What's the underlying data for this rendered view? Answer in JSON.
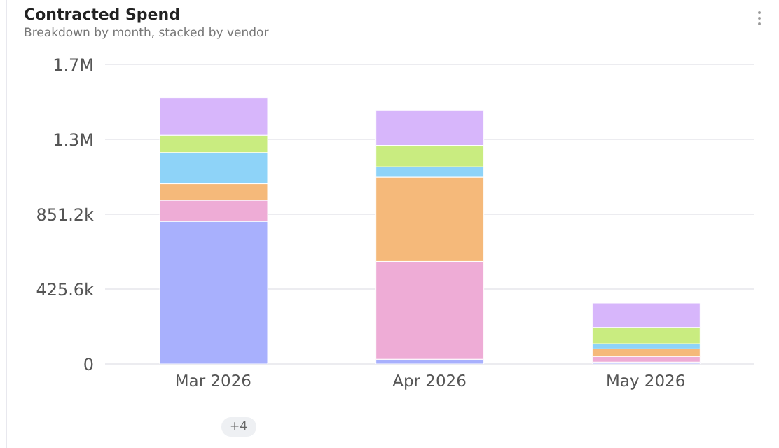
{
  "chart_data": {
    "type": "bar",
    "title": "Contracted Spend",
    "subtitle": "Breakdown by month, stacked by vendor",
    "categories": [
      "Mar 2026",
      "Apr 2026",
      "May 2026"
    ],
    "stacked": true,
    "series": [
      {
        "color": "#a8b0fd",
        "values": [
          811000,
          27000,
          11000
        ]
      },
      {
        "color": "#eeacd6",
        "values": [
          120000,
          556000,
          32000
        ]
      },
      {
        "color": "#f5b97a",
        "values": [
          93000,
          479000,
          43000
        ]
      },
      {
        "color": "#8ed3f8",
        "values": [
          178000,
          59000,
          29000
        ]
      },
      {
        "color": "#c9ec80",
        "values": [
          98000,
          122000,
          93000
        ]
      },
      {
        "color": "#d7b6fb",
        "values": [
          213000,
          200000,
          138000
        ]
      }
    ],
    "ylim": [
      0,
      1702400
    ],
    "yticks": [
      0,
      {
        "value": 425600,
        "label": "425.6k"
      },
      {
        "value": 851200,
        "label": "851.2k"
      },
      {
        "value": 1276800,
        "label": "1.3M"
      },
      {
        "value": 1702400,
        "label": "1.7M"
      }
    ],
    "grid": "y",
    "legend": false,
    "annotations": [
      "+4"
    ]
  }
}
